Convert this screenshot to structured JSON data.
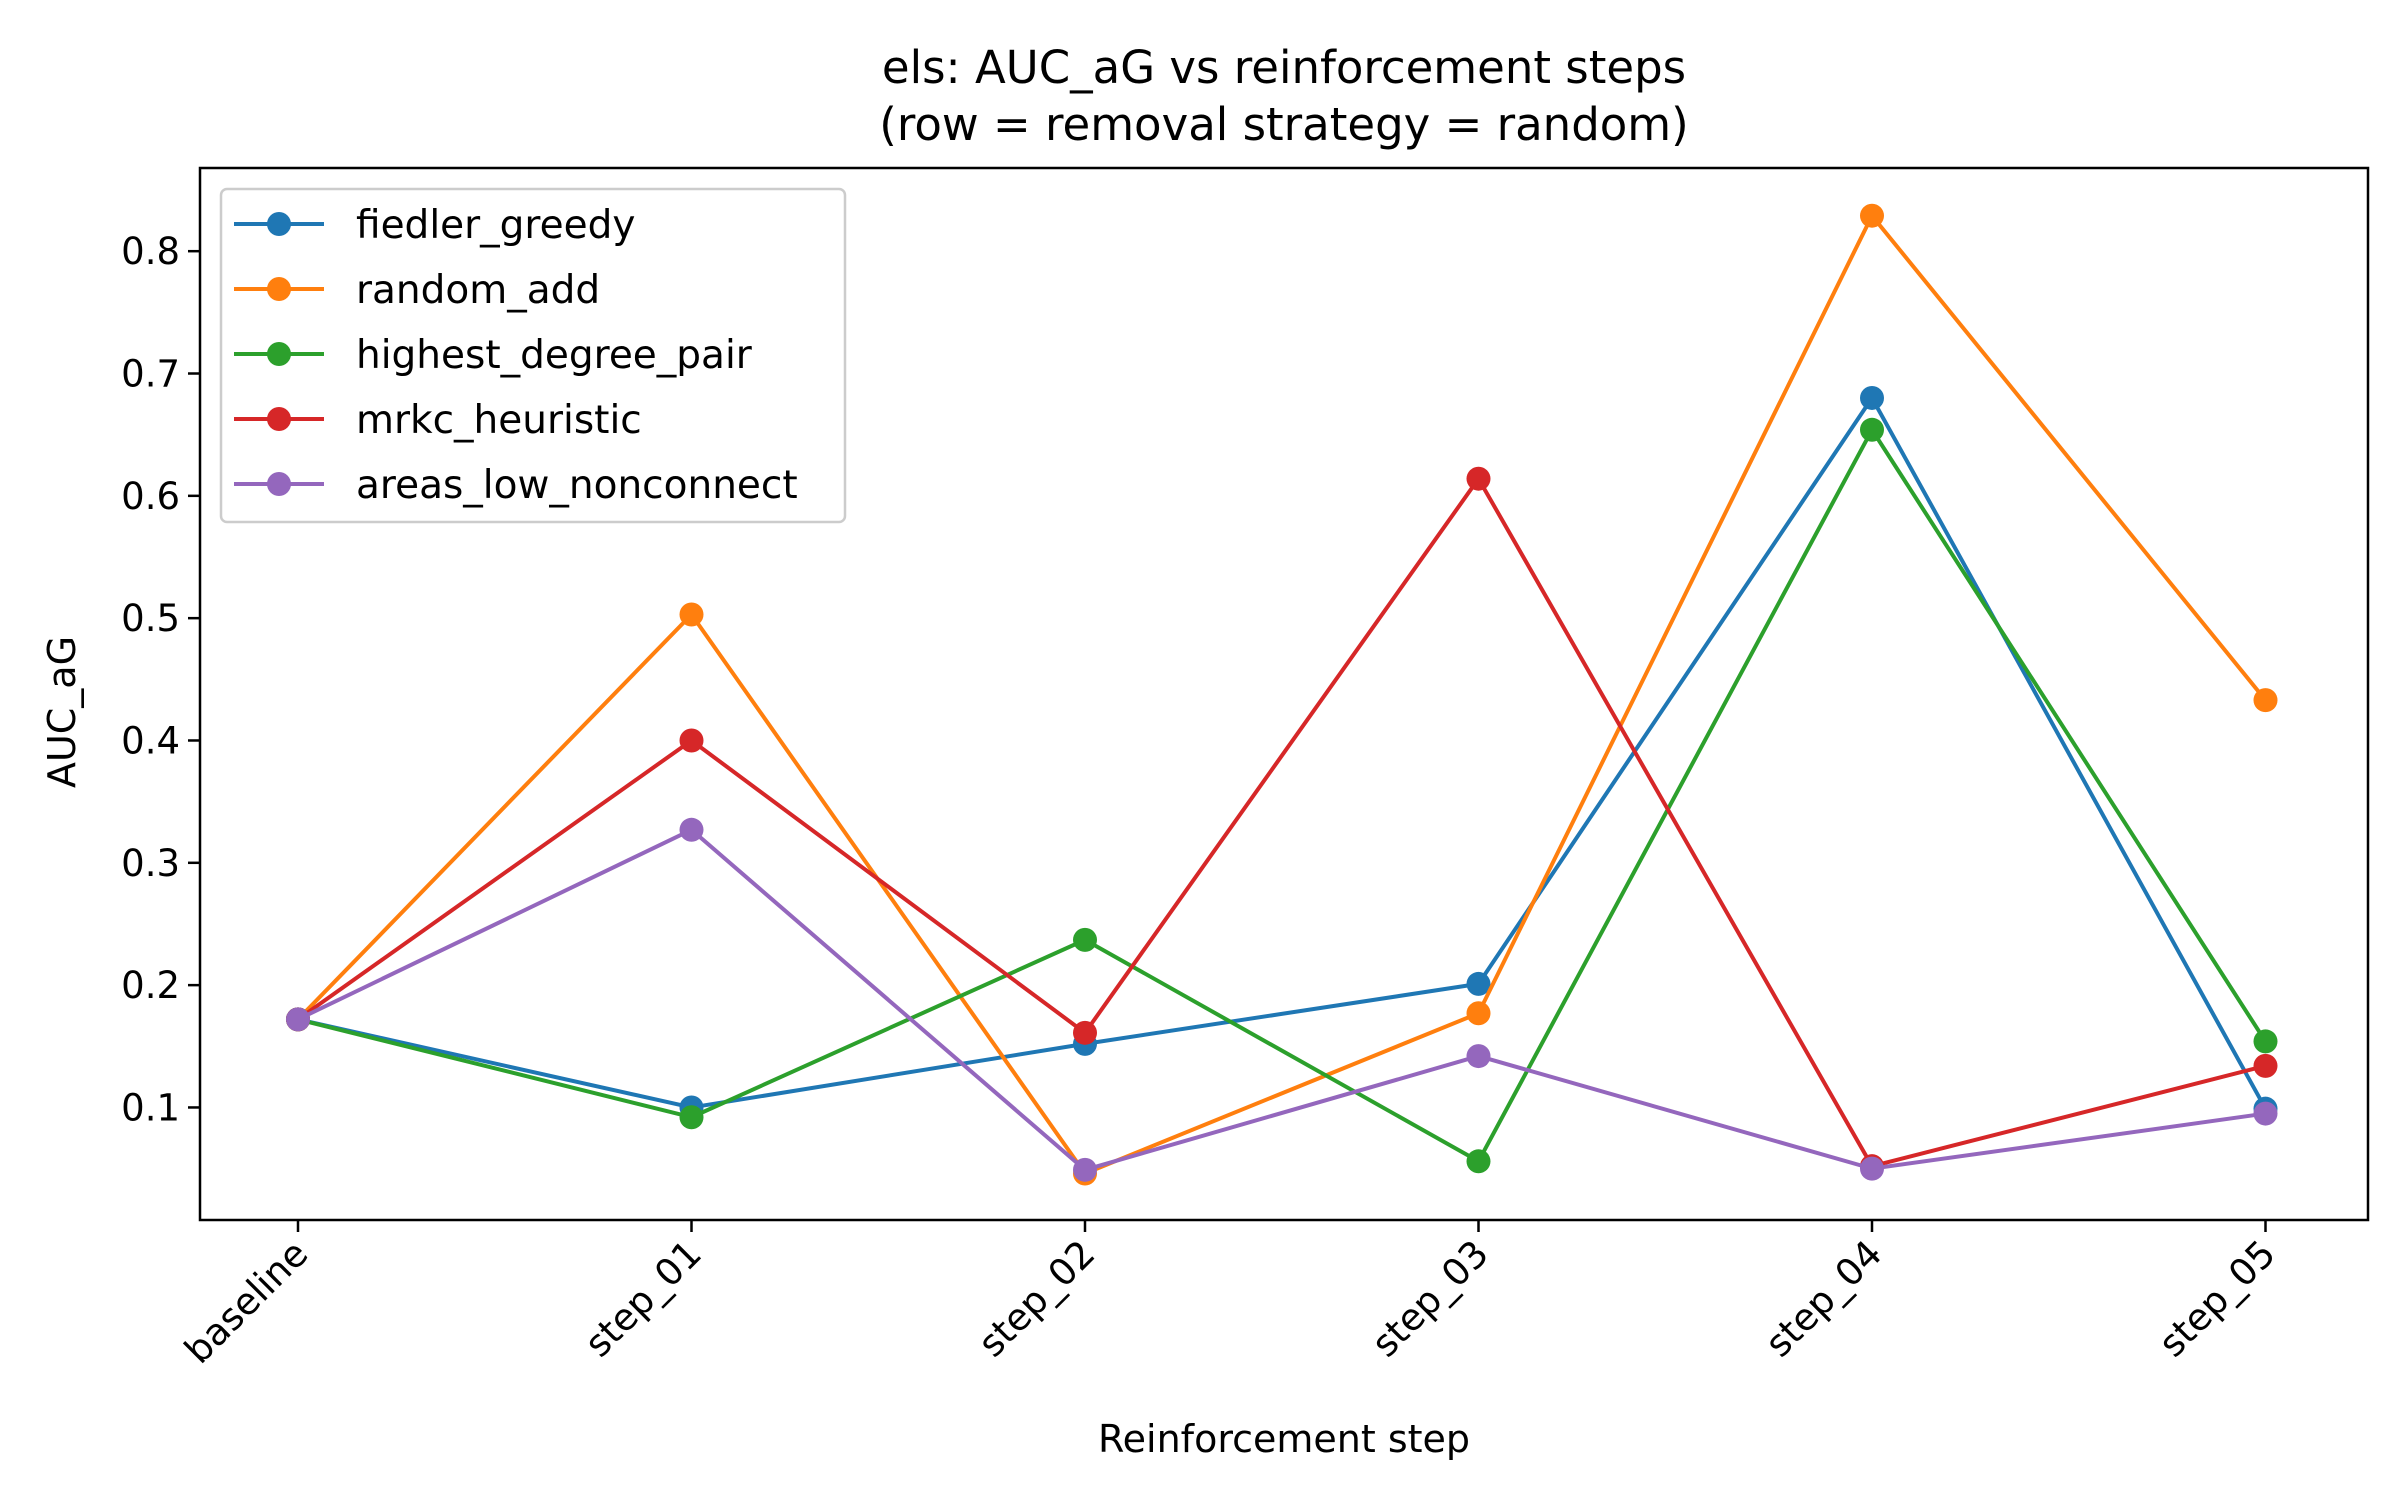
{
  "chart_data": {
    "type": "line",
    "title": "els: AUC_aG vs reinforcement steps",
    "subtitle": "(row = removal strategy = random)",
    "xlabel": "Reinforcement step",
    "ylabel": "AUC_aG",
    "categories": [
      "baseline",
      "step_01",
      "step_02",
      "step_03",
      "step_04",
      "step_05"
    ],
    "yticks": [
      0.1,
      0.2,
      0.3,
      0.4,
      0.5,
      0.6,
      0.7,
      0.8
    ],
    "ylim": [
      0.008,
      0.868
    ],
    "grid": false,
    "legend_position": "top-left",
    "series": [
      {
        "name": "fiedler_greedy",
        "color": "#1f77b4",
        "values": [
          0.172,
          0.1,
          0.152,
          0.201,
          0.68,
          0.099
        ]
      },
      {
        "name": "random_add",
        "color": "#ff7f0e",
        "values": [
          0.172,
          0.503,
          0.046,
          0.177,
          0.829,
          0.433
        ]
      },
      {
        "name": "highest_degree_pair",
        "color": "#2ca02c",
        "values": [
          0.172,
          0.092,
          0.237,
          0.056,
          0.654,
          0.154
        ]
      },
      {
        "name": "mrkc_heuristic",
        "color": "#d62728",
        "values": [
          0.172,
          0.4,
          0.161,
          0.614,
          0.052,
          0.134
        ]
      },
      {
        "name": "areas_low_nonconnect",
        "color": "#9467bd",
        "values": [
          0.172,
          0.327,
          0.049,
          0.142,
          0.05,
          0.095
        ]
      }
    ]
  }
}
